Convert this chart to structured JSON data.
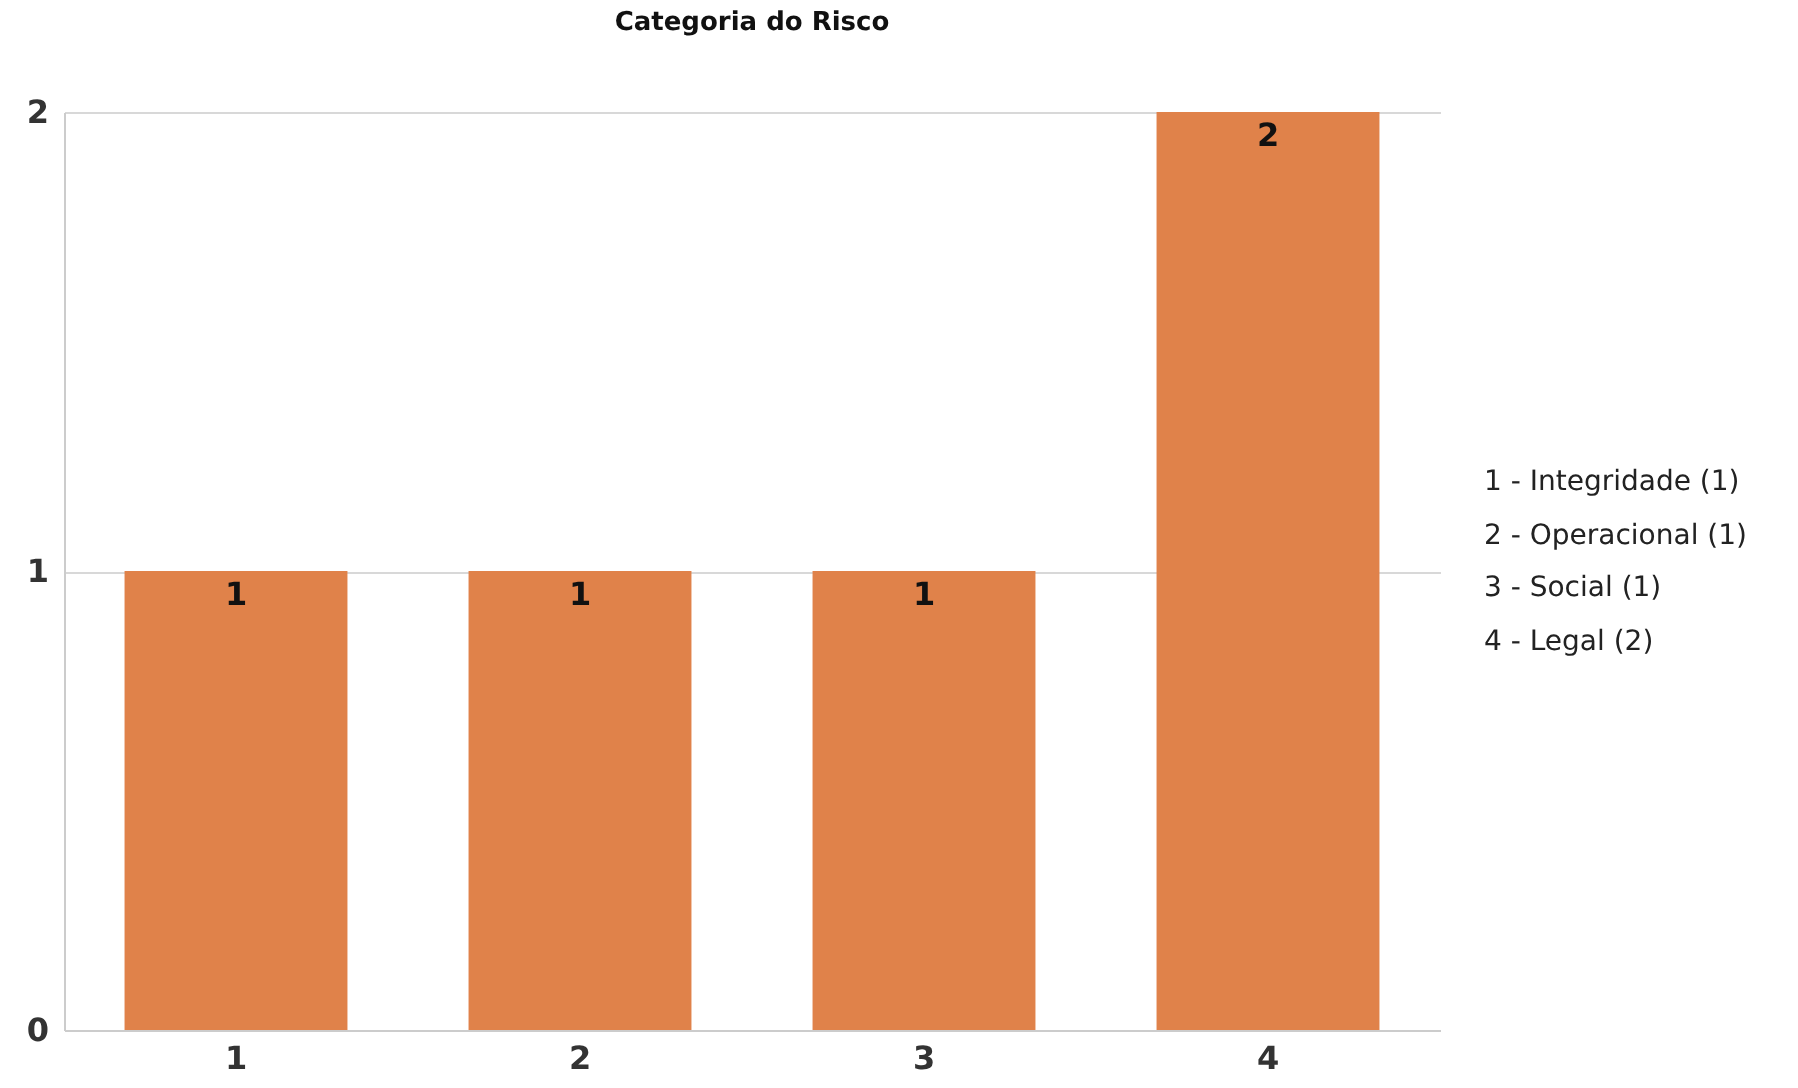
{
  "chart_data": {
    "type": "bar",
    "title": "Categoria do Risco",
    "categories": [
      "1",
      "2",
      "3",
      "4"
    ],
    "values": [
      1,
      1,
      1,
      2
    ],
    "color": "#e0824a",
    "ylim": [
      0,
      2
    ],
    "yticks": [
      0,
      1,
      2
    ],
    "grid": "y",
    "data_labels": true,
    "annotations": [
      "1 - Integridade (1)",
      "2 - Operacional (1)",
      "3 - Social (1)",
      "4 - Legal (2)"
    ]
  }
}
